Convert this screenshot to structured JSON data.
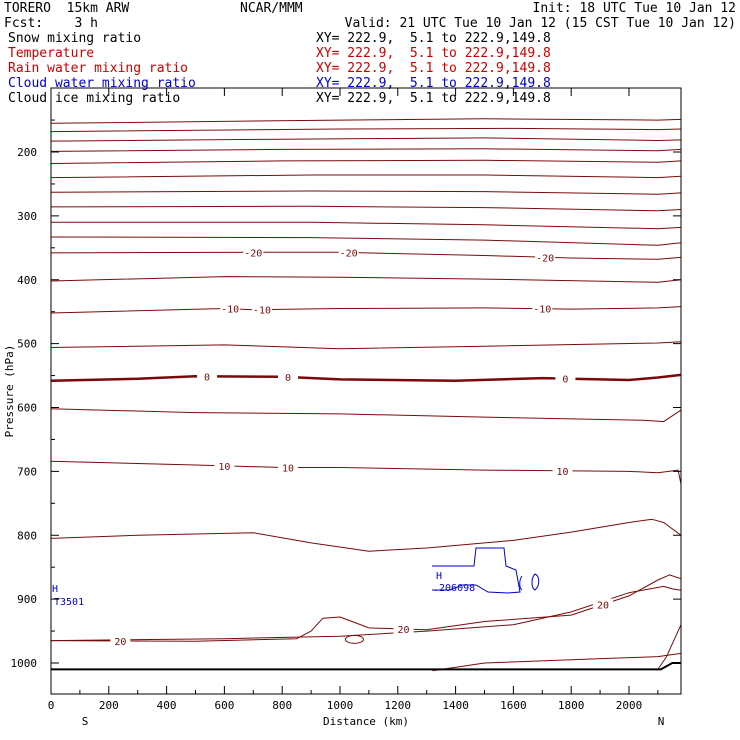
{
  "header": {
    "model": "TORERO  15km ARW",
    "center": "NCAR/MMM",
    "init": "Init: 18 UTC Tue 10 Jan 12",
    "fcst": "Fcst:    3 h",
    "valid": "Valid: 21 UTC Tue 10 Jan 12 (15 CST Tue 10 Jan 12)"
  },
  "fields": [
    {
      "name": "Snow mixing ratio",
      "xy": "",
      "color": "#000000"
    },
    {
      "name": "Temperature",
      "xy": "XY= 222.9,  5.1 to 222.9,149.8",
      "color": "#cc0000"
    },
    {
      "name": "Rain water mixing ratio",
      "xy": "XY= 222.9,  5.1 to 222.9,149.8",
      "color": "#cc0000"
    },
    {
      "name": "Cloud water mixing ratio",
      "xy": "XY= 222.9,  5.1 to 222.9,149.8",
      "color": "#0000cc"
    },
    {
      "name": "Cloud ice mixing ratio",
      "xy": "XY= 222.9,  5.1 to 222.9,149.8",
      "color": "#000000"
    }
  ],
  "first_xy": "XY= 222.9,  5.1 to 222.9,149.8",
  "colors": {
    "temperature": "#7a0a0a",
    "cloud_water": "#0000cc",
    "ground": "#000000"
  },
  "chart_data": {
    "type": "cross-section",
    "xlabel": "Distance (km)",
    "ylabel": "Pressure (hPa)",
    "xlim": [
      0,
      2180
    ],
    "ylim": [
      1050,
      100
    ],
    "x_ticks": [
      "0",
      "200",
      "400",
      "600",
      "800",
      "1000",
      "1200",
      "1400",
      "1600",
      "1800",
      "2000"
    ],
    "y_ticks": [
      "200",
      "300",
      "400",
      "500",
      "600",
      "700",
      "800",
      "900",
      "1000"
    ],
    "left_end": "S",
    "right_end": "N",
    "temperature_contours": [
      {
        "label": "",
        "bold": false,
        "points": [
          [
            0,
            155
          ],
          [
            1000,
            150
          ],
          [
            1500,
            148
          ],
          [
            2100,
            150
          ],
          [
            2180,
            149
          ]
        ]
      },
      {
        "label": "",
        "bold": false,
        "points": [
          [
            0,
            168
          ],
          [
            1000,
            164
          ],
          [
            1600,
            163
          ],
          [
            2100,
            165
          ],
          [
            2180,
            164
          ]
        ]
      },
      {
        "label": "",
        "bold": false,
        "points": [
          [
            0,
            183
          ],
          [
            800,
            180
          ],
          [
            1500,
            178
          ],
          [
            2100,
            182
          ],
          [
            2180,
            181
          ]
        ]
      },
      {
        "label": "",
        "bold": false,
        "points": [
          [
            0,
            199
          ],
          [
            800,
            196
          ],
          [
            1500,
            195
          ],
          [
            2100,
            198
          ],
          [
            2180,
            196
          ]
        ]
      },
      {
        "label": "",
        "bold": false,
        "points": [
          [
            0,
            218
          ],
          [
            800,
            214
          ],
          [
            1500,
            213
          ],
          [
            2100,
            216
          ],
          [
            2180,
            214
          ]
        ]
      },
      {
        "label": "",
        "bold": false,
        "points": [
          [
            0,
            240
          ],
          [
            900,
            236
          ],
          [
            1500,
            236
          ],
          [
            2100,
            240
          ],
          [
            2180,
            238
          ]
        ]
      },
      {
        "label": "",
        "bold": false,
        "points": [
          [
            0,
            263
          ],
          [
            900,
            261
          ],
          [
            1500,
            262
          ],
          [
            2100,
            266
          ],
          [
            2180,
            264
          ]
        ]
      },
      {
        "label": "",
        "bold": false,
        "points": [
          [
            0,
            286
          ],
          [
            900,
            285
          ],
          [
            1500,
            287
          ],
          [
            2100,
            292
          ],
          [
            2180,
            290
          ]
        ]
      },
      {
        "label": "",
        "bold": false,
        "points": [
          [
            0,
            310
          ],
          [
            900,
            310
          ],
          [
            1500,
            314
          ],
          [
            2100,
            320
          ],
          [
            2180,
            318
          ]
        ]
      },
      {
        "label": "",
        "bold": false,
        "points": [
          [
            0,
            333
          ],
          [
            900,
            334
          ],
          [
            1500,
            338
          ],
          [
            2100,
            346
          ],
          [
            2180,
            342
          ]
        ]
      },
      {
        "label": "-20",
        "bold": false,
        "label_x": [
          700,
          1030,
          1710
        ],
        "points": [
          [
            0,
            358
          ],
          [
            700,
            357
          ],
          [
            1000,
            357
          ],
          [
            1500,
            362
          ],
          [
            1800,
            366
          ],
          [
            2100,
            368
          ],
          [
            2180,
            365
          ]
        ]
      },
      {
        "label": "",
        "bold": false,
        "points": [
          [
            0,
            402
          ],
          [
            600,
            395
          ],
          [
            1000,
            396
          ],
          [
            1500,
            399
          ],
          [
            2100,
            404
          ],
          [
            2180,
            400
          ]
        ]
      },
      {
        "label": "-10",
        "bold": false,
        "label_x": [
          620,
          730,
          1700
        ],
        "points": [
          [
            0,
            452
          ],
          [
            600,
            445
          ],
          [
            700,
            447
          ],
          [
            1000,
            445
          ],
          [
            1500,
            444
          ],
          [
            1800,
            446
          ],
          [
            2100,
            444
          ],
          [
            2180,
            442
          ]
        ]
      },
      {
        "label": "",
        "bold": false,
        "points": [
          [
            0,
            506
          ],
          [
            600,
            502
          ],
          [
            1000,
            508
          ],
          [
            1500,
            504
          ],
          [
            2100,
            499
          ],
          [
            2180,
            497
          ]
        ]
      },
      {
        "label": "0",
        "bold": true,
        "label_x": [
          540,
          820,
          1780
        ],
        "points": [
          [
            0,
            558
          ],
          [
            300,
            555
          ],
          [
            500,
            551
          ],
          [
            800,
            552
          ],
          [
            1000,
            556
          ],
          [
            1400,
            558
          ],
          [
            1700,
            554
          ],
          [
            2000,
            557
          ],
          [
            2100,
            553
          ],
          [
            2180,
            549
          ]
        ]
      },
      {
        "label": "",
        "bold": false,
        "points": [
          [
            0,
            602
          ],
          [
            500,
            608
          ],
          [
            1000,
            610
          ],
          [
            1500,
            615
          ],
          [
            2050,
            620
          ],
          [
            2120,
            622
          ],
          [
            2180,
            604
          ]
        ]
      },
      {
        "label": "10",
        "bold": false,
        "label_x": [
          600,
          820,
          1770
        ],
        "points": [
          [
            0,
            684
          ],
          [
            500,
            690
          ],
          [
            800,
            694
          ],
          [
            1000,
            694
          ],
          [
            1500,
            698
          ],
          [
            2000,
            700
          ],
          [
            2100,
            702
          ],
          [
            2170,
            698
          ],
          [
            2180,
            720
          ]
        ]
      },
      {
        "label": "",
        "bold": false,
        "points": [
          [
            0,
            805
          ],
          [
            300,
            800
          ],
          [
            700,
            796
          ],
          [
            900,
            812
          ],
          [
            1100,
            825
          ],
          [
            1300,
            820
          ],
          [
            1600,
            808
          ],
          [
            1800,
            795
          ],
          [
            2000,
            780
          ],
          [
            2080,
            775
          ],
          [
            2120,
            780
          ],
          [
            2180,
            800
          ]
        ]
      },
      {
        "label": "",
        "bold": false,
        "points": [
          [
            0,
            965
          ],
          [
            600,
            962
          ],
          [
            1000,
            958
          ],
          [
            1300,
            950
          ],
          [
            1600,
            940
          ],
          [
            1800,
            920
          ],
          [
            2000,
            890
          ],
          [
            2120,
            880
          ],
          [
            2150,
            884
          ],
          [
            2180,
            886
          ]
        ]
      },
      {
        "label": "20",
        "bold": false,
        "label_x": [
          240,
          1220,
          1910
        ],
        "points": [
          [
            0,
            965
          ],
          [
            500,
            966
          ],
          [
            850,
            962
          ],
          [
            900,
            950
          ],
          [
            940,
            930
          ],
          [
            1000,
            928
          ],
          [
            1100,
            945
          ],
          [
            1300,
            948
          ],
          [
            1500,
            935
          ],
          [
            1800,
            925
          ],
          [
            2000,
            895
          ],
          [
            2100,
            870
          ],
          [
            2140,
            862
          ],
          [
            2180,
            868
          ]
        ]
      },
      {
        "label": "",
        "bold": false,
        "points": [
          [
            1320,
            1012
          ],
          [
            1500,
            1000
          ],
          [
            1800,
            995
          ],
          [
            2100,
            990
          ],
          [
            2180,
            985
          ]
        ]
      },
      {
        "label": "",
        "bold": false,
        "points": [
          [
            2100,
            1010
          ],
          [
            2130,
            990
          ],
          [
            2150,
            970
          ],
          [
            2170,
            950
          ],
          [
            2180,
            940
          ]
        ]
      }
    ],
    "cloud_water": {
      "label_h": "H",
      "label_value": ".206098",
      "left_label_value": "T3501",
      "left_label_h": "H"
    },
    "ground": {
      "pressure": 1010,
      "rise_x": 2110
    }
  }
}
